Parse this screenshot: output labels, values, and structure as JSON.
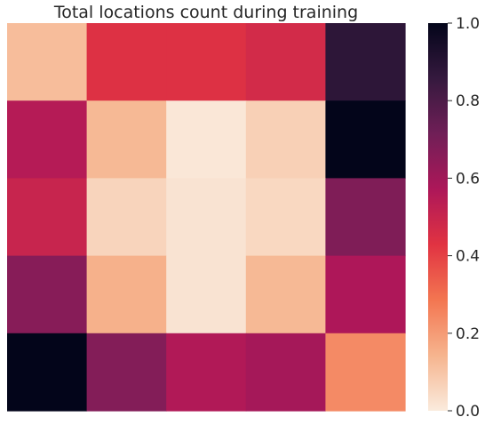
{
  "chart_data": {
    "type": "heatmap",
    "title": "Total locations count during training",
    "xlabel": "",
    "ylabel": "",
    "rows": 5,
    "cols": 5,
    "values": [
      [
        0.12,
        0.44,
        0.44,
        0.47,
        0.88
      ],
      [
        0.55,
        0.13,
        0.01,
        0.07,
        1.0
      ],
      [
        0.5,
        0.06,
        0.02,
        0.05,
        0.68
      ],
      [
        0.66,
        0.15,
        0.02,
        0.13,
        0.57
      ],
      [
        1.0,
        0.67,
        0.56,
        0.59,
        0.24
      ]
    ],
    "colorbar": {
      "min": 0.0,
      "max": 1.0,
      "ticks": [
        0.0,
        0.2,
        0.4,
        0.6,
        0.8,
        1.0
      ],
      "tick_labels": [
        "0.0",
        "0.2",
        "0.4",
        "0.6",
        "0.8",
        "1.0"
      ],
      "colormap": [
        "#faebdd",
        "#f6b48e",
        "#f37651",
        "#e13342",
        "#ad1759",
        "#701f57",
        "#35193e",
        "#03051a"
      ]
    },
    "grid": false
  }
}
